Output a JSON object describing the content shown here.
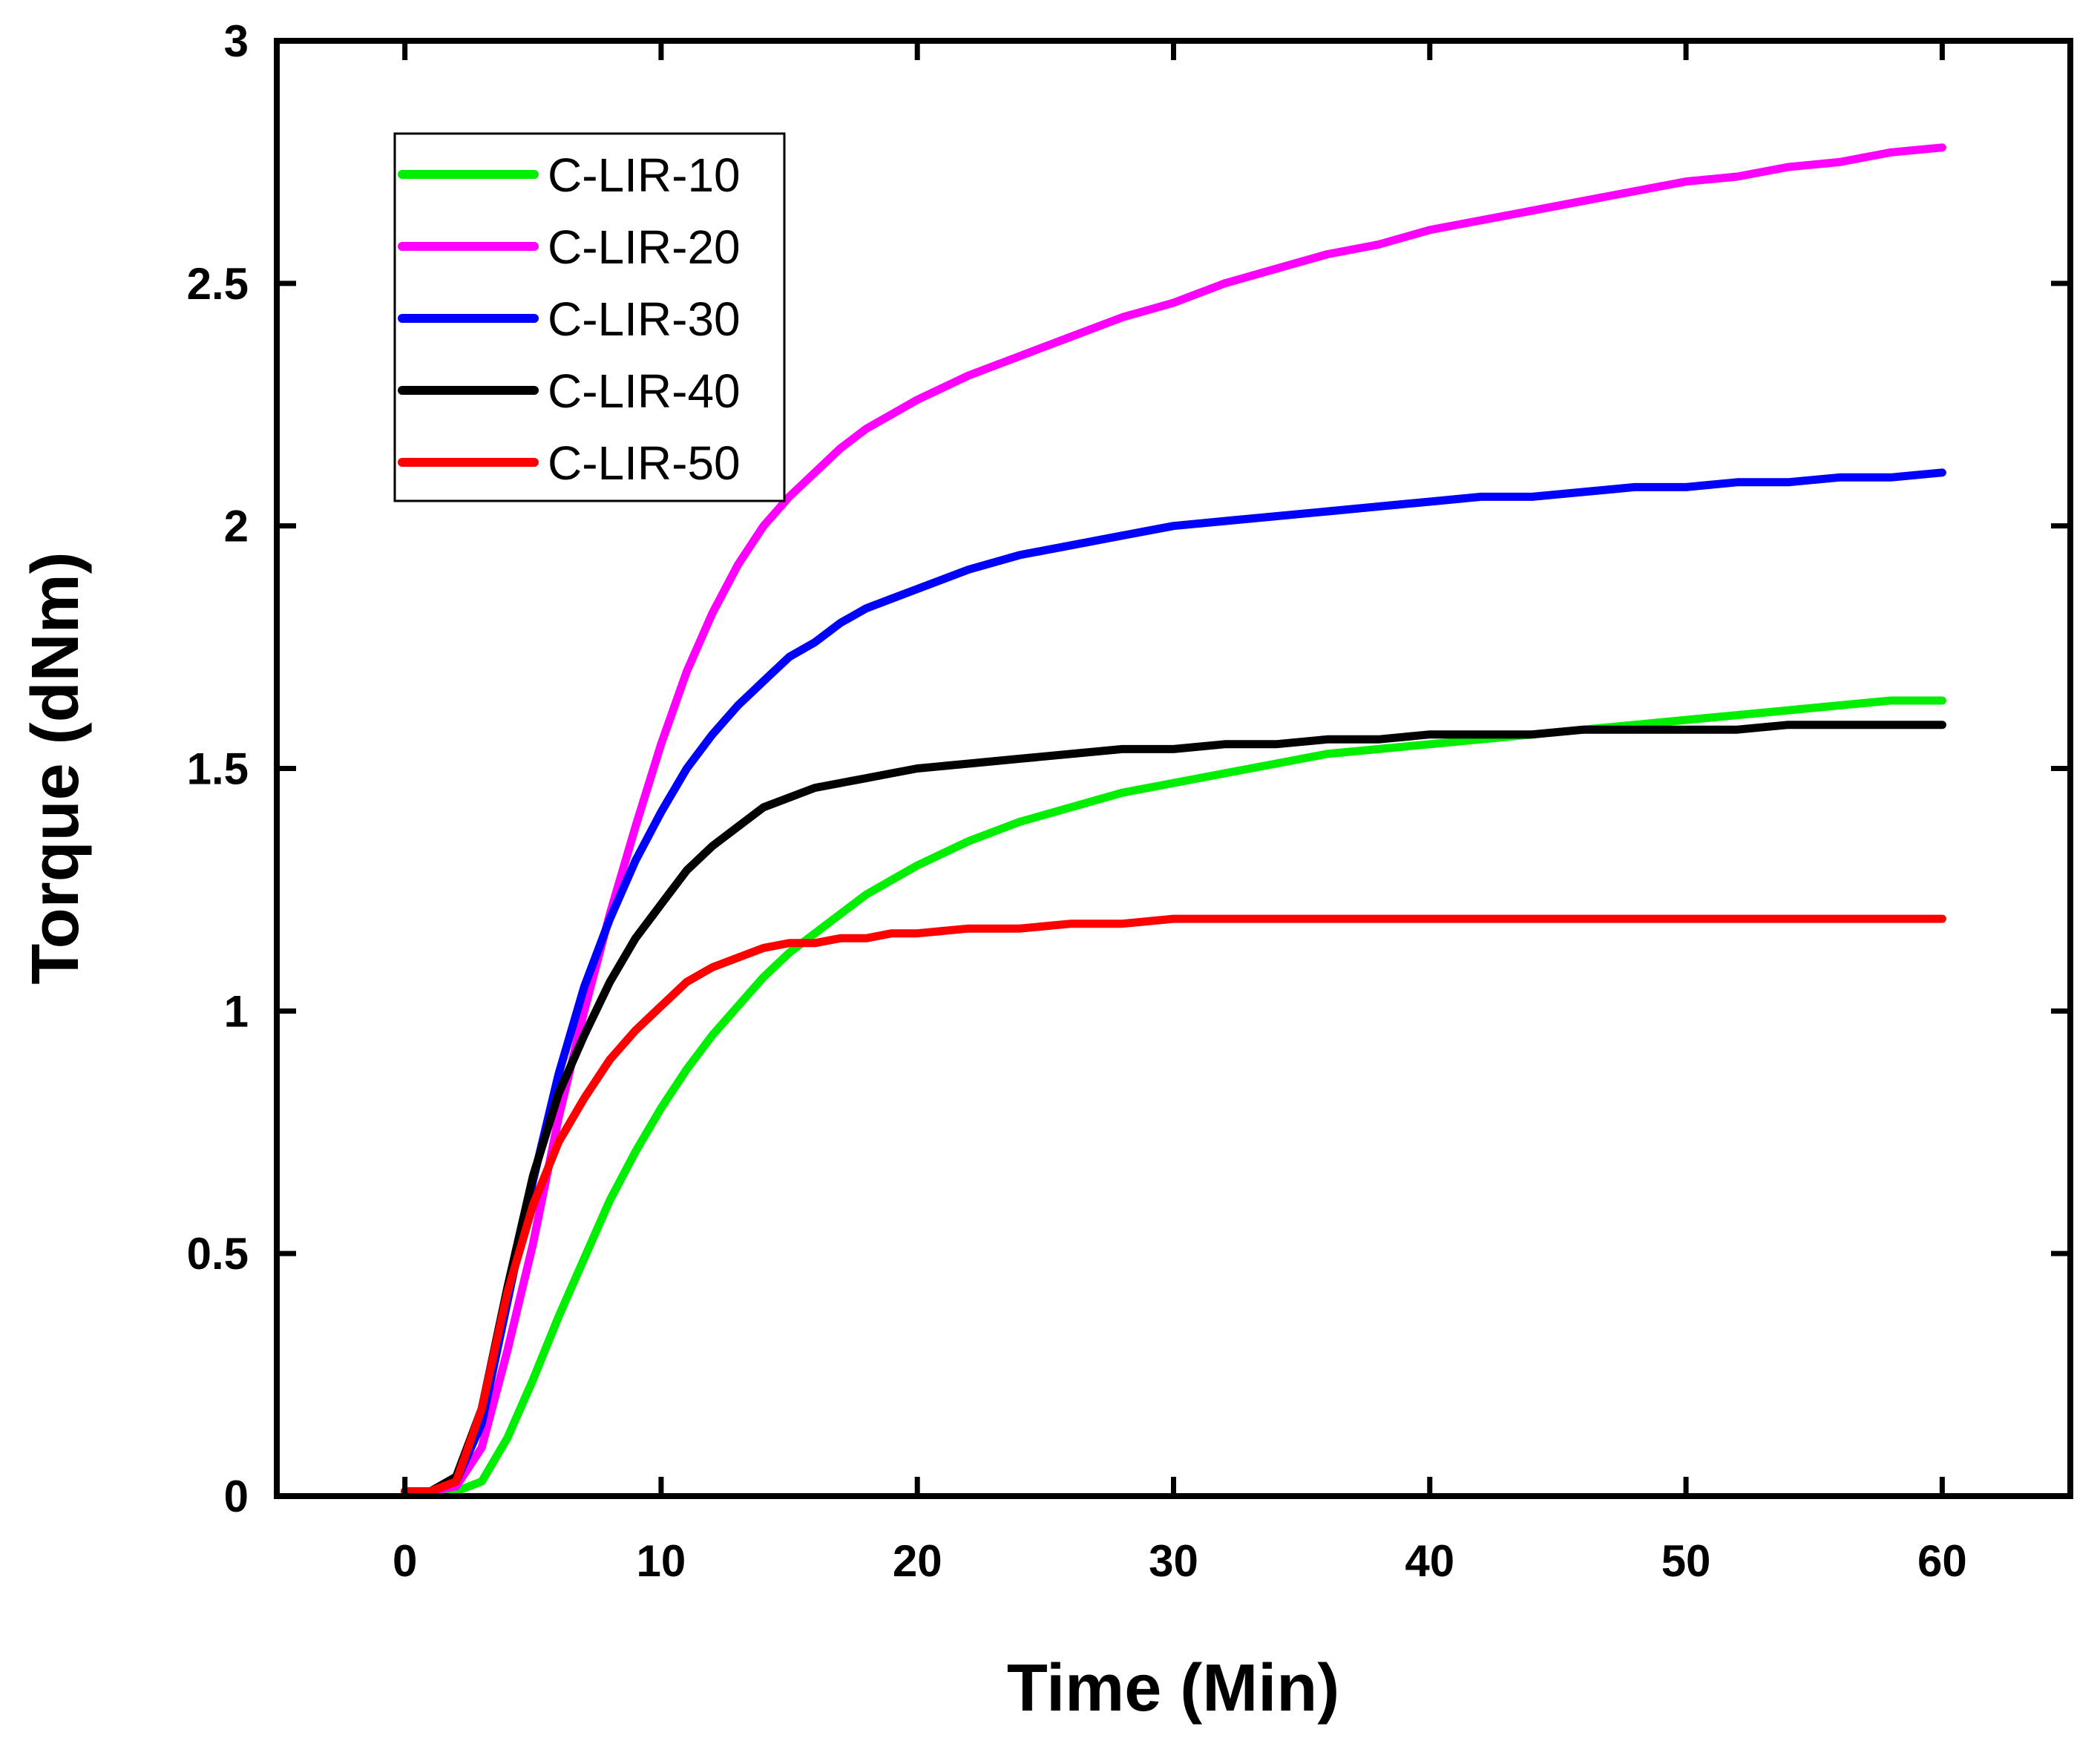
{
  "chart_data": {
    "type": "line",
    "title": "",
    "xlabel": "Time (Min)",
    "ylabel": "Torque (dNm)",
    "xlim": [
      -5,
      65
    ],
    "ylim": [
      0,
      3
    ],
    "xticks": [
      0,
      10,
      20,
      30,
      40,
      50,
      60
    ],
    "xtick_labels": [
      "0",
      "10",
      "20",
      "30",
      "40",
      "50",
      "60"
    ],
    "yticks": [
      0,
      0.5,
      1,
      1.5,
      2,
      2.5,
      3
    ],
    "ytick_labels": [
      "0",
      "0.5",
      "1",
      "1.5",
      "2",
      "2.5",
      "3"
    ],
    "grid": false,
    "legend_position": "top-left",
    "x": [
      0,
      1,
      2,
      3,
      4,
      5,
      6,
      7,
      8,
      9,
      10,
      11,
      12,
      13,
      14,
      15,
      16,
      17,
      18,
      19,
      20,
      22,
      24,
      26,
      28,
      30,
      32,
      34,
      36,
      38,
      40,
      42,
      44,
      46,
      48,
      50,
      52,
      54,
      56,
      58,
      60
    ],
    "series": [
      {
        "name": "C-LIR-10",
        "color": "#00ee00",
        "values": [
          0.01,
          0.01,
          0.01,
          0.03,
          0.12,
          0.24,
          0.37,
          0.49,
          0.61,
          0.71,
          0.8,
          0.88,
          0.95,
          1.01,
          1.07,
          1.12,
          1.16,
          1.2,
          1.24,
          1.27,
          1.3,
          1.35,
          1.39,
          1.42,
          1.45,
          1.47,
          1.49,
          1.51,
          1.53,
          1.54,
          1.55,
          1.56,
          1.57,
          1.58,
          1.59,
          1.6,
          1.61,
          1.62,
          1.63,
          1.64,
          1.64
        ]
      },
      {
        "name": "C-LIR-20",
        "color": "#ff00ff",
        "values": [
          0.01,
          0.01,
          0.02,
          0.1,
          0.3,
          0.52,
          0.78,
          1.0,
          1.2,
          1.38,
          1.55,
          1.7,
          1.82,
          1.92,
          2.0,
          2.06,
          2.11,
          2.16,
          2.2,
          2.23,
          2.26,
          2.31,
          2.35,
          2.39,
          2.43,
          2.46,
          2.5,
          2.53,
          2.56,
          2.58,
          2.61,
          2.63,
          2.65,
          2.67,
          2.69,
          2.71,
          2.72,
          2.74,
          2.75,
          2.77,
          2.78
        ]
      },
      {
        "name": "C-LIR-30",
        "color": "#0000ff",
        "values": [
          0.01,
          0.01,
          0.03,
          0.15,
          0.4,
          0.65,
          0.87,
          1.05,
          1.19,
          1.31,
          1.41,
          1.5,
          1.57,
          1.63,
          1.68,
          1.73,
          1.76,
          1.8,
          1.83,
          1.85,
          1.87,
          1.91,
          1.94,
          1.96,
          1.98,
          2.0,
          2.01,
          2.02,
          2.03,
          2.04,
          2.05,
          2.06,
          2.06,
          2.07,
          2.08,
          2.08,
          2.09,
          2.09,
          2.1,
          2.1,
          2.11
        ]
      },
      {
        "name": "C-LIR-40",
        "color": "#000000",
        "values": [
          0.01,
          0.01,
          0.04,
          0.18,
          0.43,
          0.66,
          0.83,
          0.95,
          1.06,
          1.15,
          1.22,
          1.29,
          1.34,
          1.38,
          1.42,
          1.44,
          1.46,
          1.47,
          1.48,
          1.49,
          1.5,
          1.51,
          1.52,
          1.53,
          1.54,
          1.54,
          1.55,
          1.55,
          1.56,
          1.56,
          1.57,
          1.57,
          1.57,
          1.58,
          1.58,
          1.58,
          1.58,
          1.59,
          1.59,
          1.59,
          1.59
        ]
      },
      {
        "name": "C-LIR-50",
        "color": "#ff0000",
        "values": [
          0.01,
          0.01,
          0.03,
          0.18,
          0.42,
          0.6,
          0.73,
          0.82,
          0.9,
          0.96,
          1.01,
          1.06,
          1.09,
          1.11,
          1.13,
          1.14,
          1.14,
          1.15,
          1.15,
          1.16,
          1.16,
          1.17,
          1.17,
          1.18,
          1.18,
          1.19,
          1.19,
          1.19,
          1.19,
          1.19,
          1.19,
          1.19,
          1.19,
          1.19,
          1.19,
          1.19,
          1.19,
          1.19,
          1.19,
          1.19,
          1.19
        ]
      }
    ]
  }
}
